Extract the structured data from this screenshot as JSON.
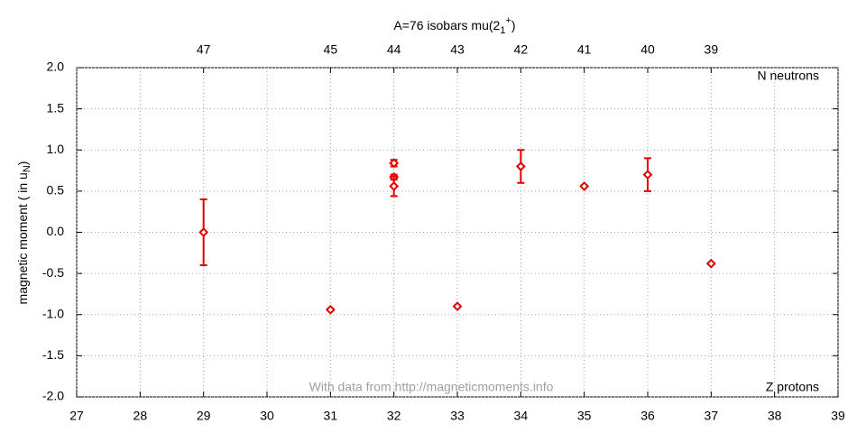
{
  "chart_data": {
    "type": "scatter",
    "title": "A=76 isobars mu(2",
    "title_sub": "1",
    "title_sup": "+",
    "title_end": ")",
    "y_label": "magnetic moment ( in u",
    "y_label_sub": "N",
    "y_label_end": ")",
    "annotations": [
      "N neutrons",
      "Z protons",
      "With data from http://magneticmoments.info"
    ],
    "xlim": [
      27,
      39
    ],
    "xticks": [
      27,
      28,
      29,
      30,
      31,
      32,
      33,
      34,
      35,
      36,
      37,
      38,
      39
    ],
    "ylim": [
      -2,
      2
    ],
    "yticks": [
      {
        "value": -2,
        "label": "-2.0"
      },
      -1.5,
      {
        "value": -1,
        "label": "-1.0"
      },
      -0.5,
      {
        "value": 0,
        "label": "0.0"
      },
      0.5,
      {
        "value": 1,
        "label": "1.0"
      },
      1.5,
      {
        "value": 2,
        "label": "2.0"
      }
    ],
    "x2ticks": [
      {
        "value": 29,
        "label": "47"
      },
      {
        "value": 31,
        "label": "45"
      },
      {
        "value": 32,
        "label": "44"
      },
      {
        "value": 33,
        "label": "43"
      },
      {
        "value": 34,
        "label": "42"
      },
      {
        "value": 35,
        "label": "41"
      },
      {
        "value": 36,
        "label": "40"
      },
      {
        "value": 37,
        "label": "39"
      }
    ],
    "grid": true,
    "series": [
      {
        "color": "#e00000",
        "x": [
          29,
          31,
          32,
          32,
          32,
          33,
          34,
          35,
          36,
          37
        ],
        "values": [
          0.0,
          -0.94,
          0.84,
          0.67,
          0.56,
          -0.9,
          0.8,
          0.56,
          0.7,
          -0.38
        ],
        "errors": [
          0.4,
          0.01,
          0.04,
          0.03,
          0.12,
          0.01,
          0.2,
          0.01,
          0.2,
          0.01
        ]
      }
    ]
  }
}
